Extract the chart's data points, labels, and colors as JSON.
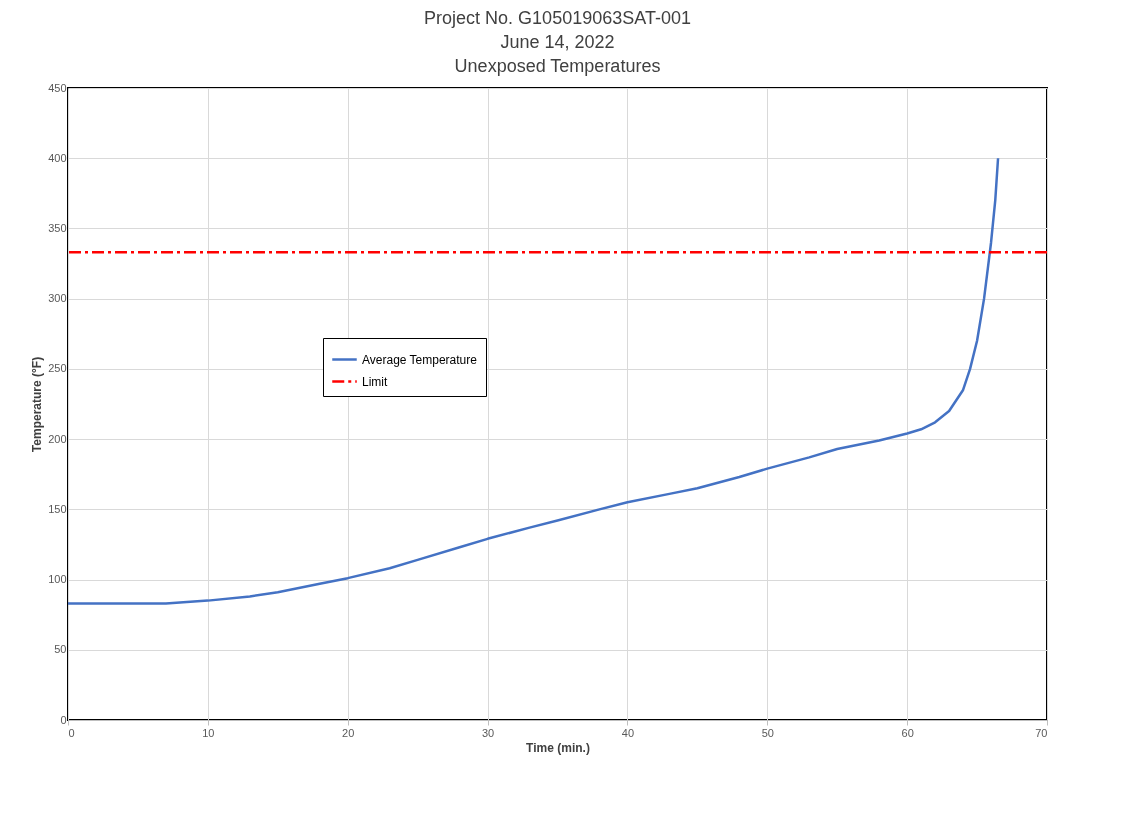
{
  "chart_data": {
    "type": "line",
    "title": [
      "Project No. G105019063SAT-001",
      "June 14, 2022",
      "Unexposed Temperatures"
    ],
    "xlabel": "Time (min.)",
    "ylabel": "Temperature (°F)",
    "series": [
      {
        "name": "Average Temperature",
        "color": "#4472c4",
        "x": [
          0,
          5,
          7,
          10,
          13,
          15,
          18,
          20,
          23,
          25,
          28,
          30,
          33,
          35,
          38,
          40,
          43,
          45,
          48,
          50,
          53,
          55,
          58,
          60,
          61,
          62,
          63,
          64,
          64.5,
          65,
          65.5,
          66,
          66.3,
          66.5
        ],
        "values": [
          83,
          83,
          83,
          85,
          88,
          91,
          97,
          101,
          108,
          114,
          123,
          129,
          137,
          142,
          150,
          155,
          161,
          165,
          173,
          179,
          187,
          193,
          199,
          204,
          207,
          212,
          220,
          235,
          250,
          270,
          300,
          340,
          370,
          400
        ]
      }
    ],
    "ref_lines": [
      {
        "axis": "y",
        "value": 333,
        "label": "Limit",
        "color": "#ff0000",
        "line_style": "dashdot"
      }
    ],
    "xlim": [
      0,
      70
    ],
    "xticks": [
      0,
      10,
      20,
      30,
      40,
      50,
      60,
      70
    ],
    "ylim": [
      0,
      450
    ],
    "yticks": [
      0,
      50,
      100,
      150,
      200,
      250,
      300,
      350,
      400,
      450
    ],
    "grid": true,
    "legend": "left",
    "line_style": "solid",
    "marker": "none"
  }
}
